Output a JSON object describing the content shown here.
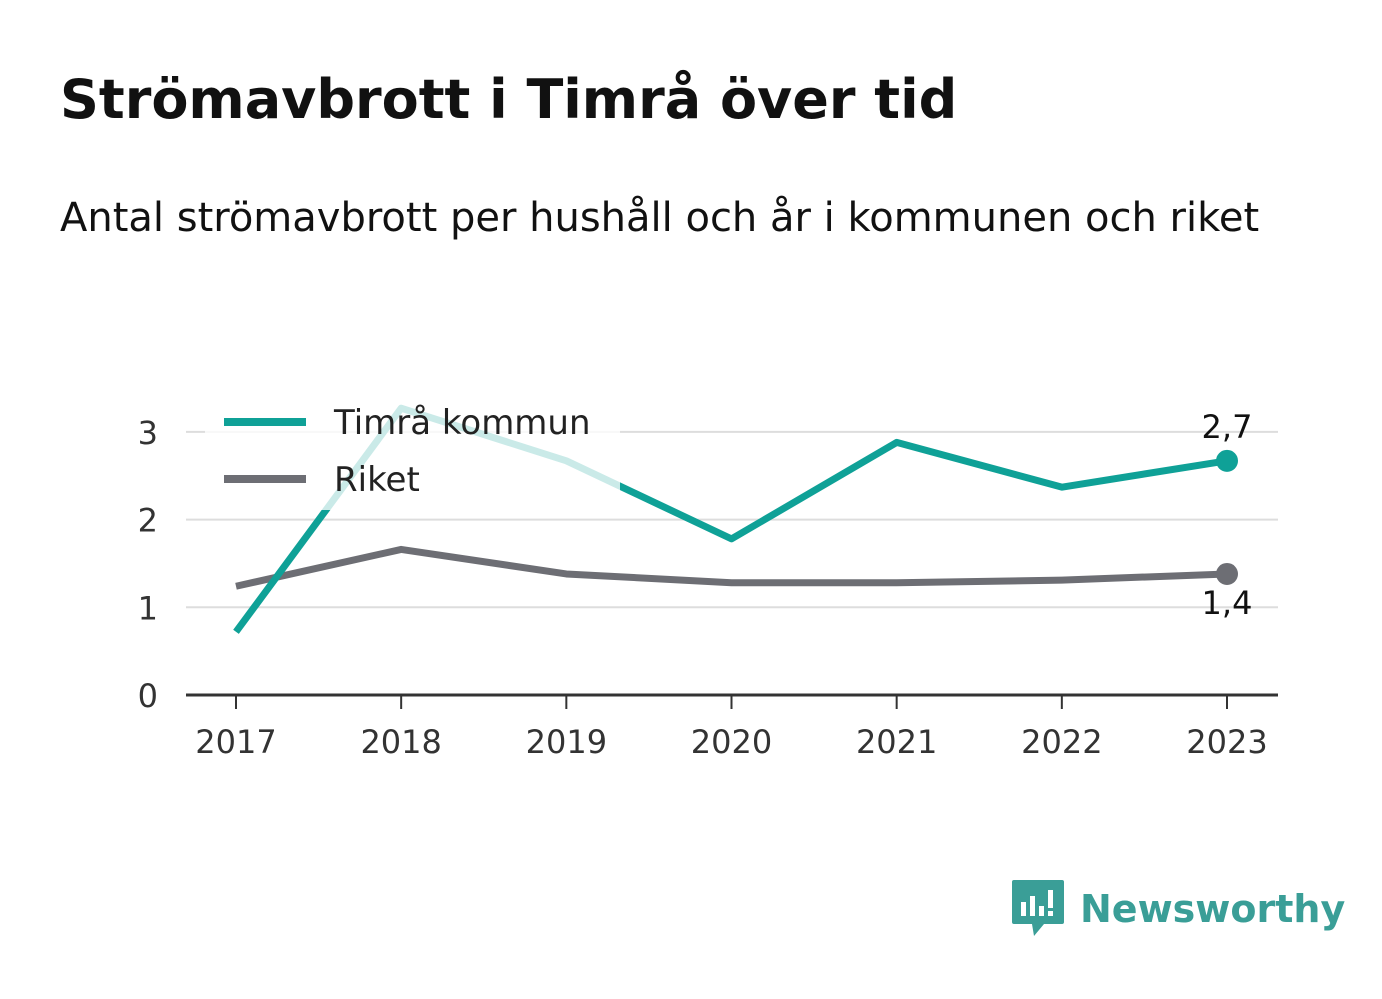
{
  "title": "Strömavbrott i Timrå över tid",
  "subtitle": "Antal strömavbrott per hushåll och år i kommunen och riket",
  "brand": {
    "name": "Newsworthy",
    "color": "#3a9e97",
    "icon": "newsworthy-logo-icon"
  },
  "chart_data": {
    "type": "line",
    "x": [
      "2017",
      "2018",
      "2019",
      "2020",
      "2021",
      "2022",
      "2023"
    ],
    "series": [
      {
        "name": "Timrå kommun",
        "values": [
          0.72,
          3.27,
          2.67,
          1.78,
          2.88,
          2.37,
          2.67
        ],
        "color": "#0fa197",
        "end_label": "2,7"
      },
      {
        "name": "Riket",
        "values": [
          1.24,
          1.66,
          1.38,
          1.28,
          1.28,
          1.31,
          1.38
        ],
        "color": "#6d6e74",
        "end_label": "1,4"
      }
    ],
    "ylim": [
      0,
      3.3
    ],
    "yticks": [
      0,
      1,
      2,
      3
    ],
    "xlabel": "",
    "ylabel": "",
    "grid": true,
    "legend": "top-left"
  }
}
